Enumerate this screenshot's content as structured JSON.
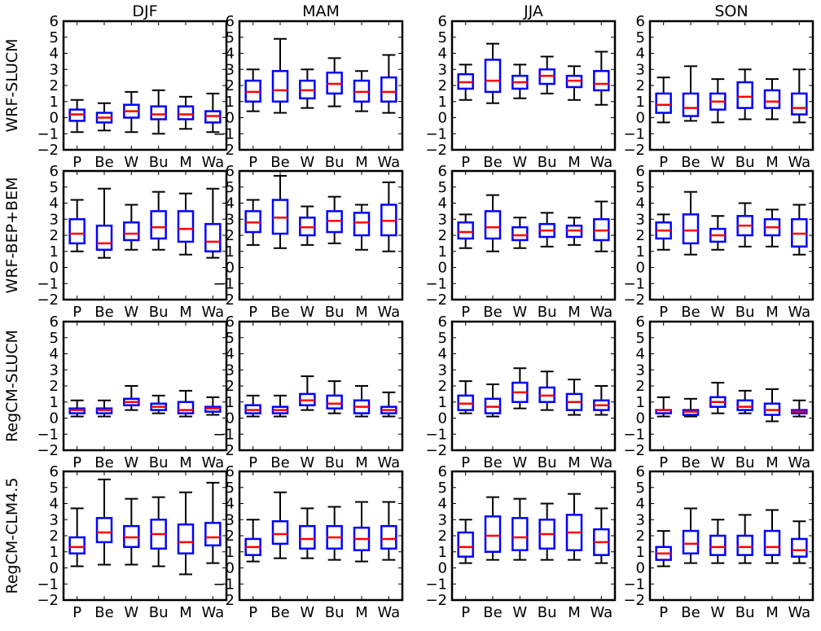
{
  "chart_data": {
    "type": "boxplot",
    "seasons": [
      "DJF",
      "MAM",
      "JJA",
      "SON"
    ],
    "models": [
      "WRF-SLUCM",
      "WRF-BEP+BEM",
      "RegCM-SLUCM",
      "RegCM-CLM4.5"
    ],
    "categories": [
      "P",
      "Be",
      "W",
      "Bu",
      "M",
      "Wa"
    ],
    "ylim": [
      -2,
      6
    ],
    "yticks": [
      "−2",
      "−1",
      "0",
      "1",
      "2",
      "3",
      "4",
      "5",
      "6"
    ],
    "box_color": "#0000ff",
    "median_color": "#ff0000",
    "whisker_color": "#000000",
    "panels": [
      [
        [
          [
            -0.9,
            -0.2,
            0.2,
            0.5,
            1.1
          ],
          [
            -0.8,
            -0.3,
            0.0,
            0.3,
            0.9
          ],
          [
            -0.9,
            0.0,
            0.4,
            0.8,
            1.6
          ],
          [
            -1.0,
            -0.1,
            0.2,
            0.7,
            1.7
          ],
          [
            -0.7,
            -0.1,
            0.2,
            0.7,
            1.3
          ],
          [
            -0.9,
            -0.3,
            0.1,
            0.4,
            1.5
          ]
        ],
        [
          [
            0.4,
            1.0,
            1.6,
            2.3,
            3.0
          ],
          [
            0.3,
            1.0,
            1.7,
            2.9,
            4.9
          ],
          [
            0.6,
            1.2,
            1.7,
            2.3,
            3.0
          ],
          [
            0.7,
            1.5,
            2.1,
            2.8,
            3.7
          ],
          [
            0.4,
            1.0,
            1.6,
            2.3,
            2.9
          ],
          [
            0.3,
            1.0,
            1.6,
            2.5,
            3.9
          ]
        ],
        [
          [
            1.1,
            1.8,
            2.2,
            2.7,
            3.3
          ],
          [
            0.9,
            1.6,
            2.3,
            3.6,
            4.6
          ],
          [
            1.2,
            1.8,
            2.2,
            2.6,
            3.3
          ],
          [
            1.5,
            2.1,
            2.6,
            3.0,
            3.8
          ],
          [
            1.1,
            1.9,
            2.3,
            2.6,
            3.2
          ],
          [
            0.8,
            1.7,
            2.1,
            2.9,
            4.1
          ]
        ],
        [
          [
            -0.3,
            0.3,
            0.8,
            1.5,
            2.5
          ],
          [
            -0.2,
            0.1,
            0.6,
            1.5,
            3.2
          ],
          [
            -0.3,
            0.5,
            1.0,
            1.5,
            2.4
          ],
          [
            -0.1,
            0.6,
            1.3,
            2.2,
            3.0
          ],
          [
            -0.1,
            0.6,
            1.0,
            1.7,
            2.4
          ],
          [
            -0.3,
            0.2,
            0.6,
            1.5,
            3.0
          ]
        ]
      ],
      [
        [
          [
            1.0,
            1.5,
            2.1,
            3.0,
            4.2
          ],
          [
            0.6,
            1.1,
            1.5,
            2.6,
            4.9
          ],
          [
            1.1,
            1.7,
            2.1,
            2.8,
            3.9
          ],
          [
            1.1,
            1.8,
            2.5,
            3.5,
            4.7
          ],
          [
            0.8,
            1.6,
            2.4,
            3.5,
            4.6
          ],
          [
            0.6,
            1.0,
            1.6,
            2.7,
            4.9
          ]
        ],
        [
          [
            1.4,
            2.2,
            2.8,
            3.5,
            4.2
          ],
          [
            1.2,
            2.1,
            3.1,
            4.2,
            5.7
          ],
          [
            1.4,
            2.0,
            2.5,
            3.1,
            3.8
          ],
          [
            1.5,
            2.2,
            2.9,
            3.5,
            4.4
          ],
          [
            1.1,
            2.0,
            2.8,
            3.4,
            3.9
          ],
          [
            1.0,
            2.0,
            2.9,
            3.9,
            5.3
          ]
        ],
        [
          [
            1.2,
            1.8,
            2.2,
            2.8,
            3.3
          ],
          [
            1.0,
            1.8,
            2.5,
            3.5,
            4.5
          ],
          [
            1.2,
            1.7,
            2.0,
            2.5,
            3.1
          ],
          [
            1.3,
            1.9,
            2.3,
            2.7,
            3.4
          ],
          [
            1.4,
            1.9,
            2.3,
            2.6,
            3.1
          ],
          [
            1.0,
            1.7,
            2.3,
            3.0,
            4.1
          ]
        ],
        [
          [
            1.1,
            1.8,
            2.3,
            2.8,
            3.3
          ],
          [
            0.8,
            1.5,
            2.3,
            3.3,
            4.7
          ],
          [
            1.1,
            1.6,
            2.0,
            2.4,
            3.2
          ],
          [
            1.3,
            2.0,
            2.6,
            3.2,
            4.0
          ],
          [
            1.3,
            2.0,
            2.5,
            3.0,
            3.6
          ],
          [
            0.8,
            1.3,
            2.1,
            3.0,
            3.9
          ]
        ]
      ],
      [
        [
          [
            0.1,
            0.3,
            0.5,
            0.6,
            1.1
          ],
          [
            0.1,
            0.3,
            0.5,
            0.6,
            1.1
          ],
          [
            0.5,
            0.8,
            1.0,
            1.2,
            2.0
          ],
          [
            0.3,
            0.5,
            0.7,
            0.9,
            1.4
          ],
          [
            0.1,
            0.3,
            0.5,
            1.0,
            1.7
          ],
          [
            0.2,
            0.4,
            0.6,
            0.7,
            1.3
          ]
        ],
        [
          [
            0.1,
            0.3,
            0.5,
            0.8,
            1.4
          ],
          [
            0.1,
            0.3,
            0.5,
            0.7,
            1.4
          ],
          [
            0.5,
            0.8,
            1.1,
            1.5,
            2.6
          ],
          [
            0.3,
            0.6,
            0.9,
            1.4,
            2.3
          ],
          [
            0.1,
            0.3,
            0.7,
            1.1,
            2.0
          ],
          [
            0.1,
            0.3,
            0.5,
            0.7,
            1.6
          ]
        ],
        [
          [
            0.3,
            0.5,
            0.9,
            1.4,
            2.3
          ],
          [
            0.1,
            0.3,
            0.7,
            1.2,
            2.1
          ],
          [
            0.6,
            1.0,
            1.6,
            2.2,
            3.1
          ],
          [
            0.5,
            1.0,
            1.4,
            1.9,
            2.9
          ],
          [
            0.2,
            0.5,
            1.0,
            1.5,
            2.4
          ],
          [
            0.2,
            0.5,
            0.8,
            1.1,
            2.0
          ]
        ],
        [
          [
            0.1,
            0.3,
            0.5,
            0.5,
            1.3
          ],
          [
            0.1,
            0.2,
            0.4,
            0.5,
            1.2
          ],
          [
            0.3,
            0.7,
            1.0,
            1.3,
            2.2
          ],
          [
            0.3,
            0.5,
            0.7,
            1.1,
            1.7
          ],
          [
            -0.2,
            0.2,
            0.5,
            0.9,
            1.8
          ],
          [
            0.1,
            0.3,
            0.4,
            0.5,
            1.1
          ]
        ]
      ],
      [
        [
          [
            0.1,
            0.9,
            1.3,
            1.9,
            3.7
          ],
          [
            0.2,
            1.6,
            2.2,
            3.1,
            5.5
          ],
          [
            0.2,
            1.3,
            1.9,
            2.6,
            4.3
          ],
          [
            0.1,
            1.2,
            2.1,
            3.0,
            4.4
          ],
          [
            -0.4,
            0.9,
            1.6,
            2.7,
            4.7
          ],
          [
            0.3,
            1.4,
            1.9,
            2.8,
            5.3
          ]
        ],
        [
          [
            0.4,
            0.8,
            1.3,
            1.8,
            3.0
          ],
          [
            0.6,
            1.5,
            2.1,
            2.9,
            4.7
          ],
          [
            0.6,
            1.2,
            1.8,
            2.6,
            3.7
          ],
          [
            0.5,
            1.2,
            1.9,
            2.6,
            3.8
          ],
          [
            0.4,
            1.1,
            1.8,
            2.5,
            4.1
          ],
          [
            0.5,
            1.2,
            1.8,
            2.6,
            4.1
          ]
        ],
        [
          [
            0.3,
            0.7,
            1.3,
            2.2,
            3.0
          ],
          [
            0.5,
            1.0,
            2.0,
            3.2,
            4.4
          ],
          [
            0.5,
            1.1,
            1.9,
            3.1,
            4.3
          ],
          [
            0.5,
            1.2,
            2.1,
            3.0,
            4.0
          ],
          [
            0.5,
            1.1,
            2.2,
            3.3,
            4.6
          ],
          [
            0.3,
            0.8,
            1.6,
            2.4,
            3.7
          ]
        ],
        [
          [
            0.1,
            0.5,
            0.9,
            1.3,
            2.3
          ],
          [
            0.3,
            0.9,
            1.5,
            2.3,
            3.7
          ],
          [
            0.3,
            0.8,
            1.3,
            2.0,
            3.0
          ],
          [
            0.3,
            0.8,
            1.3,
            2.0,
            3.3
          ],
          [
            0.3,
            0.8,
            1.3,
            2.3,
            3.6
          ],
          [
            0.3,
            0.7,
            1.1,
            1.8,
            2.9
          ]
        ]
      ]
    ]
  }
}
